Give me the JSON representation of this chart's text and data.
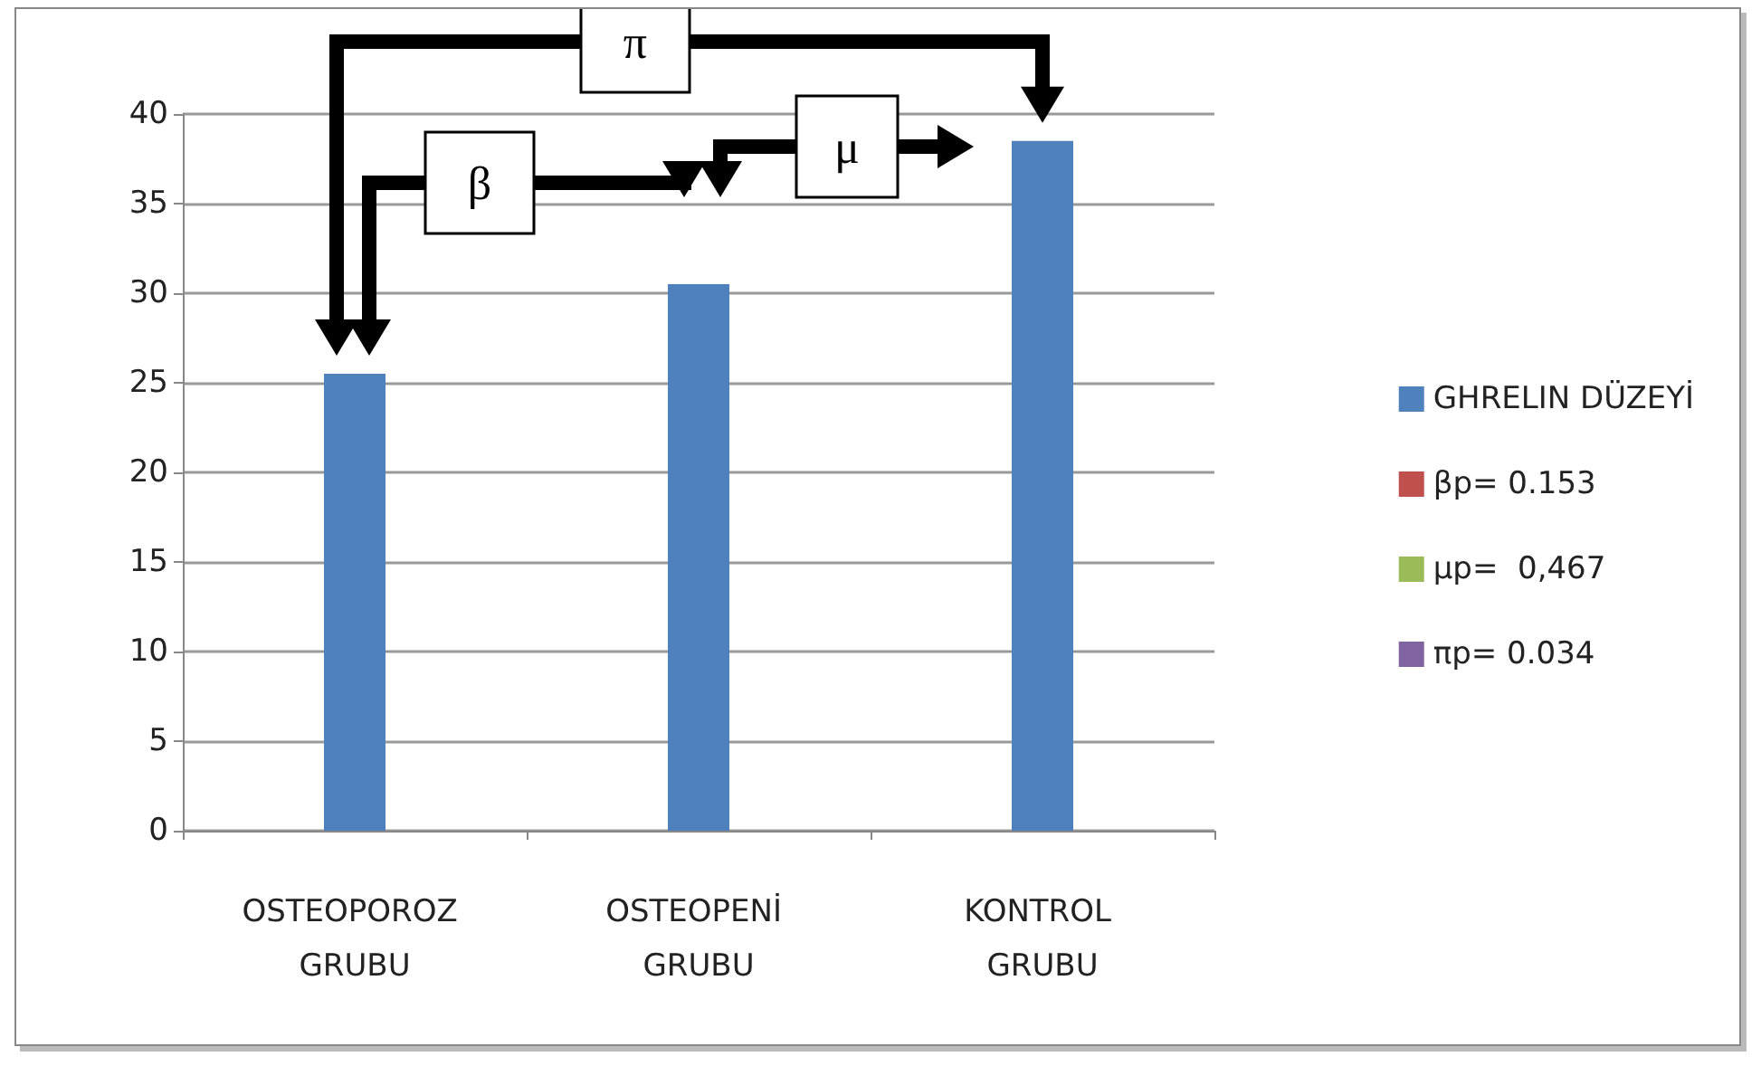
{
  "chart_data": {
    "type": "bar",
    "categories": [
      "OSTEOPOROZ GRUBU",
      "OSTEOPENİ GRUBU",
      "KONTROL GRUBU"
    ],
    "series": [
      {
        "name": "GHRELIN DÜZEYİ",
        "color": "#4f81bd",
        "values": [
          25.5,
          30.5,
          38.5
        ]
      },
      {
        "name": "βp= 0.153",
        "color": "#c0504d",
        "values": [
          null,
          null,
          null
        ]
      },
      {
        "name": "μp=  0,467",
        "color": "#9bbb59",
        "values": [
          null,
          null,
          null
        ]
      },
      {
        "name": "πp= 0.034",
        "color": "#8064a2",
        "values": [
          null,
          null,
          null
        ]
      }
    ],
    "ylim": [
      0,
      40
    ],
    "yticks": [
      0,
      5,
      10,
      15,
      20,
      25,
      30,
      35,
      40
    ],
    "grid": "y",
    "legend": "right",
    "annotations": [
      "β",
      "μ",
      "π"
    ]
  }
}
